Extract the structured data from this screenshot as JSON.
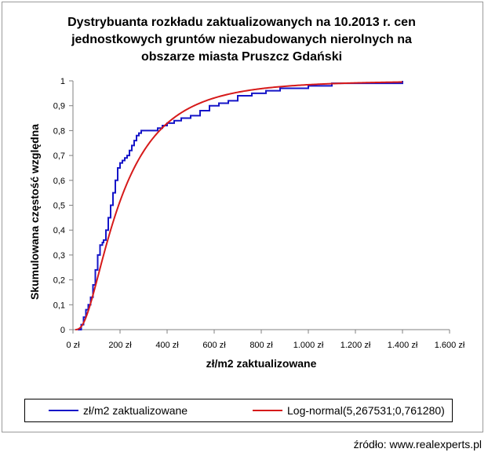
{
  "title_lines": [
    "Dystrybuanta rozkładu zaktualizowanych na 10.2013 r. cen",
    "jednostkowych gruntów niezabudowanych nierolnych na",
    "obszarze miasta Pruszcz Gdański"
  ],
  "source": "źródło: www.realexperts.pl",
  "colors": {
    "empirical": "#1515c8",
    "lognormal": "#d61a1a",
    "axis": "#808080"
  },
  "chart_data": {
    "type": "line",
    "title": "Dystrybuanta rozkładu zaktualizowanych na 10.2013 r. cen jednostkowych gruntów niezabudowanych nierolnych na obszarze miasta Pruszcz Gdański",
    "xlabel": "zł/m2 zaktualizowane",
    "ylabel": "Skumulowana częstość względna",
    "xlim": [
      0,
      1600
    ],
    "ylim": [
      0,
      1
    ],
    "x_ticks": [
      0,
      200,
      400,
      600,
      800,
      1000,
      1200,
      1400,
      1600
    ],
    "x_tick_labels": [
      "0 zł",
      "200 zł",
      "400 zł",
      "600 zł",
      "800 zł",
      "1.000 zł",
      "1.200 zł",
      "1.400 zł",
      "1.600 zł"
    ],
    "y_ticks": [
      0,
      0.1,
      0.2,
      0.3,
      0.4,
      0.5,
      0.6,
      0.7,
      0.8,
      0.9,
      1
    ],
    "y_tick_labels": [
      "0",
      "0,1",
      "0,2",
      "0,3",
      "0,4",
      "0,5",
      "0,6",
      "0,7",
      "0,8",
      "0,9",
      "1"
    ],
    "grid": false,
    "legend_position": "bottom",
    "series": [
      {
        "name": "zł/m2 zaktualizowane",
        "kind": "empirical-step",
        "x": [
          20,
          35,
          45,
          55,
          65,
          75,
          85,
          95,
          105,
          115,
          120,
          125,
          130,
          140,
          150,
          160,
          170,
          180,
          190,
          200,
          210,
          220,
          230,
          240,
          250,
          260,
          270,
          280,
          290,
          300,
          320,
          340,
          360,
          380,
          400,
          430,
          460,
          500,
          540,
          580,
          620,
          660,
          700,
          760,
          820,
          880,
          940,
          1000,
          1100,
          1200,
          1300,
          1400
        ],
        "y": [
          0.0,
          0.02,
          0.05,
          0.08,
          0.1,
          0.13,
          0.18,
          0.24,
          0.3,
          0.34,
          0.34,
          0.35,
          0.36,
          0.4,
          0.45,
          0.5,
          0.55,
          0.6,
          0.65,
          0.67,
          0.68,
          0.69,
          0.7,
          0.72,
          0.74,
          0.76,
          0.78,
          0.79,
          0.8,
          0.8,
          0.8,
          0.8,
          0.81,
          0.82,
          0.83,
          0.84,
          0.85,
          0.86,
          0.88,
          0.9,
          0.91,
          0.92,
          0.94,
          0.95,
          0.96,
          0.97,
          0.97,
          0.98,
          0.99,
          0.99,
          0.99,
          1.0
        ]
      },
      {
        "name": "Log-normal(5,267531;0,761280)",
        "kind": "lognormal-cdf",
        "mu": 5.267531,
        "sigma": 0.76128,
        "x_range": [
          10,
          1400
        ]
      }
    ]
  }
}
